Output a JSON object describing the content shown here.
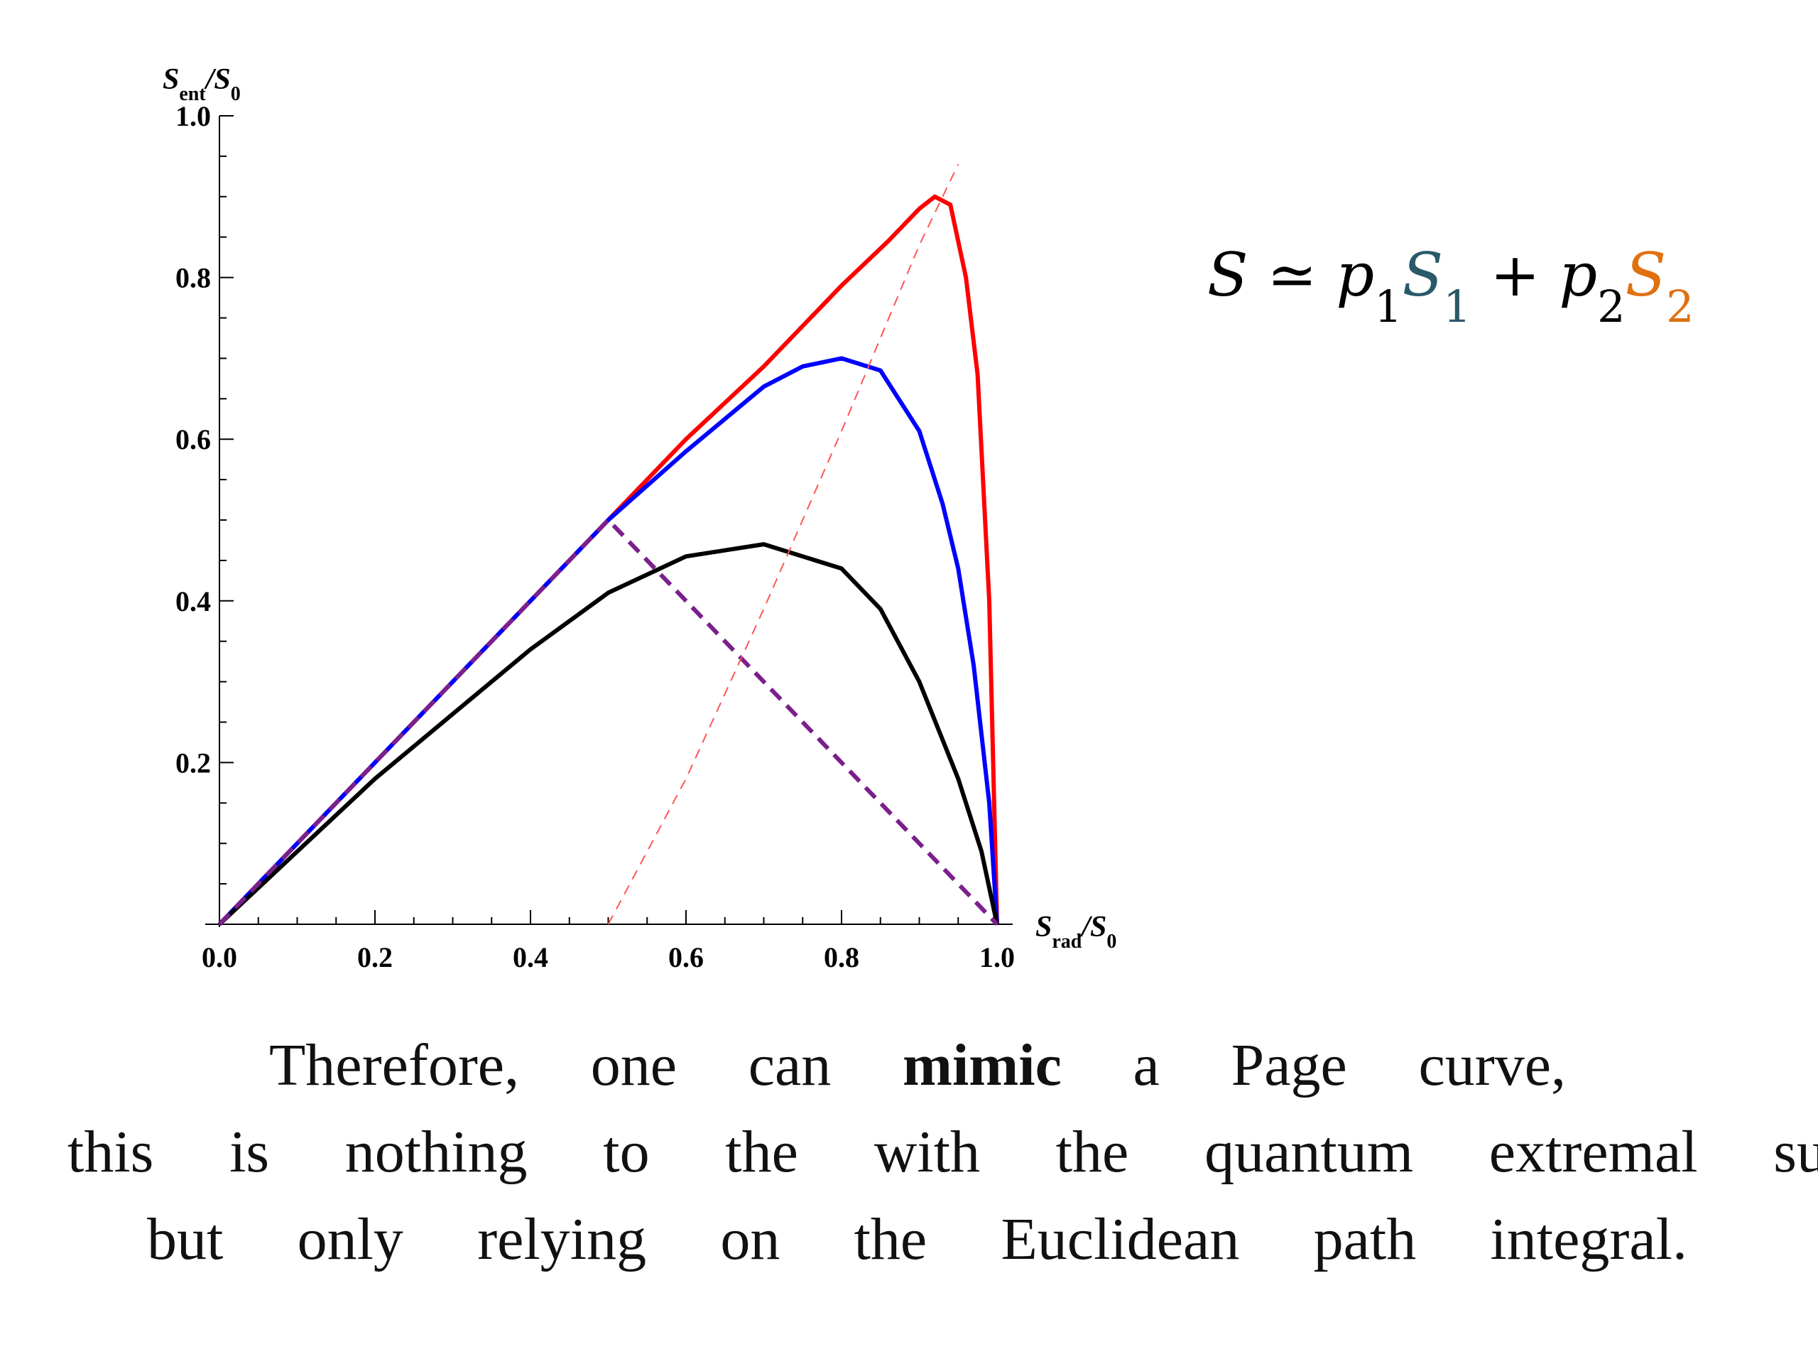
{
  "chart_data": {
    "type": "line",
    "y_label": [
      {
        "text": "S"
      },
      {
        "text": "ent",
        "sub": true
      },
      {
        "text": "/S"
      },
      {
        "text": "0",
        "sub": true
      }
    ],
    "x_label": [
      {
        "text": "S"
      },
      {
        "text": "rad",
        "sub": true
      },
      {
        "text": "/S"
      },
      {
        "text": "0",
        "sub": true
      }
    ],
    "xlim": [
      0,
      1
    ],
    "ylim": [
      0,
      1
    ],
    "xticks": [
      {
        "value": 0,
        "label": "0.0"
      },
      0.2,
      0.4,
      0.6,
      0.8,
      {
        "value": 1,
        "label": "1.0"
      }
    ],
    "yticks": [
      0.2,
      0.4,
      0.6,
      0.8,
      {
        "value": 1,
        "label": "1.0"
      }
    ],
    "xminor": [
      0.05,
      0.1,
      0.15,
      0.25,
      0.3,
      0.35,
      0.45,
      0.5,
      0.55,
      0.65,
      0.7,
      0.75,
      0.85,
      0.9,
      0.95
    ],
    "yminor": [
      0.05,
      0.1,
      0.15,
      0.25,
      0.3,
      0.35,
      0.45,
      0.5,
      0.55,
      0.65,
      0.7,
      0.75,
      0.85,
      0.9,
      0.95
    ],
    "series": [
      {
        "color": "#ff0000",
        "width": 6,
        "dash": false,
        "x": [
          0,
          0.5,
          0.6,
          0.7,
          0.8,
          0.86,
          0.9,
          0.92,
          0.94,
          0.96,
          0.975,
          0.99,
          1
        ],
        "values": [
          0,
          0.5,
          0.6,
          0.69,
          0.79,
          0.845,
          0.885,
          0.9,
          0.89,
          0.8,
          0.68,
          0.4,
          0
        ]
      },
      {
        "color": "#0000ff",
        "width": 6,
        "dash": false,
        "x": [
          0,
          0.5,
          0.6,
          0.7,
          0.75,
          0.8,
          0.85,
          0.9,
          0.93,
          0.95,
          0.97,
          0.99,
          1
        ],
        "values": [
          0,
          0.5,
          0.585,
          0.665,
          0.69,
          0.7,
          0.685,
          0.61,
          0.52,
          0.44,
          0.32,
          0.15,
          0
        ]
      },
      {
        "color": "#000000",
        "width": 6,
        "dash": false,
        "x": [
          0,
          0.1,
          0.2,
          0.3,
          0.4,
          0.5,
          0.6,
          0.7,
          0.8,
          0.85,
          0.9,
          0.95,
          0.98,
          1
        ],
        "values": [
          0,
          0.09,
          0.18,
          0.26,
          0.34,
          0.41,
          0.455,
          0.47,
          0.44,
          0.39,
          0.3,
          0.18,
          0.09,
          0
        ]
      },
      {
        "color": "#7b1f8c",
        "width": 6,
        "dash": true,
        "x": [
          0,
          0.5,
          1
        ],
        "values": [
          0,
          0.5,
          0
        ]
      },
      {
        "color": "#ff5555",
        "width": 2,
        "dash": true,
        "x": [
          0.5,
          0.6,
          0.7,
          0.8,
          0.9,
          0.95
        ],
        "values": [
          0,
          0.18,
          0.39,
          0.61,
          0.84,
          0.94
        ]
      }
    ]
  },
  "formula": [
    {
      "text": "S ≃ p",
      "color": "#000000"
    },
    {
      "text": "1",
      "color": "#000000",
      "sub": true
    },
    {
      "text": "S",
      "color": "#2a5a6a"
    },
    {
      "text": "1",
      "color": "#2a5a6a",
      "sub": true
    },
    {
      "text": " + p",
      "color": "#000000"
    },
    {
      "text": "2",
      "color": "#000000",
      "sub": true
    },
    {
      "text": "S",
      "color": "#e07010"
    },
    {
      "text": "2",
      "color": "#e07010",
      "sub": true
    }
  ],
  "paragraph": [
    [
      {
        "text": "Therefore,"
      },
      {
        "text": "one"
      },
      {
        "text": "can"
      },
      {
        "text": "mimic",
        "bold": true
      },
      {
        "text": "a"
      },
      {
        "text": "Page"
      },
      {
        "text": "curve,"
      }
    ],
    [
      {
        "text": "this"
      },
      {
        "text": "is"
      },
      {
        "text": "nothing"
      },
      {
        "text": "to"
      },
      {
        "text": "the"
      },
      {
        "text": "with"
      },
      {
        "text": "the"
      },
      {
        "text": "quantum"
      },
      {
        "text": "extremal"
      },
      {
        "text": "sur"
      }
    ],
    [
      {
        "text": "but"
      },
      {
        "text": "only"
      },
      {
        "text": "relying"
      },
      {
        "text": "on"
      },
      {
        "text": "the"
      },
      {
        "text": "Euclidean"
      },
      {
        "text": "path"
      },
      {
        "text": "integral."
      }
    ]
  ]
}
